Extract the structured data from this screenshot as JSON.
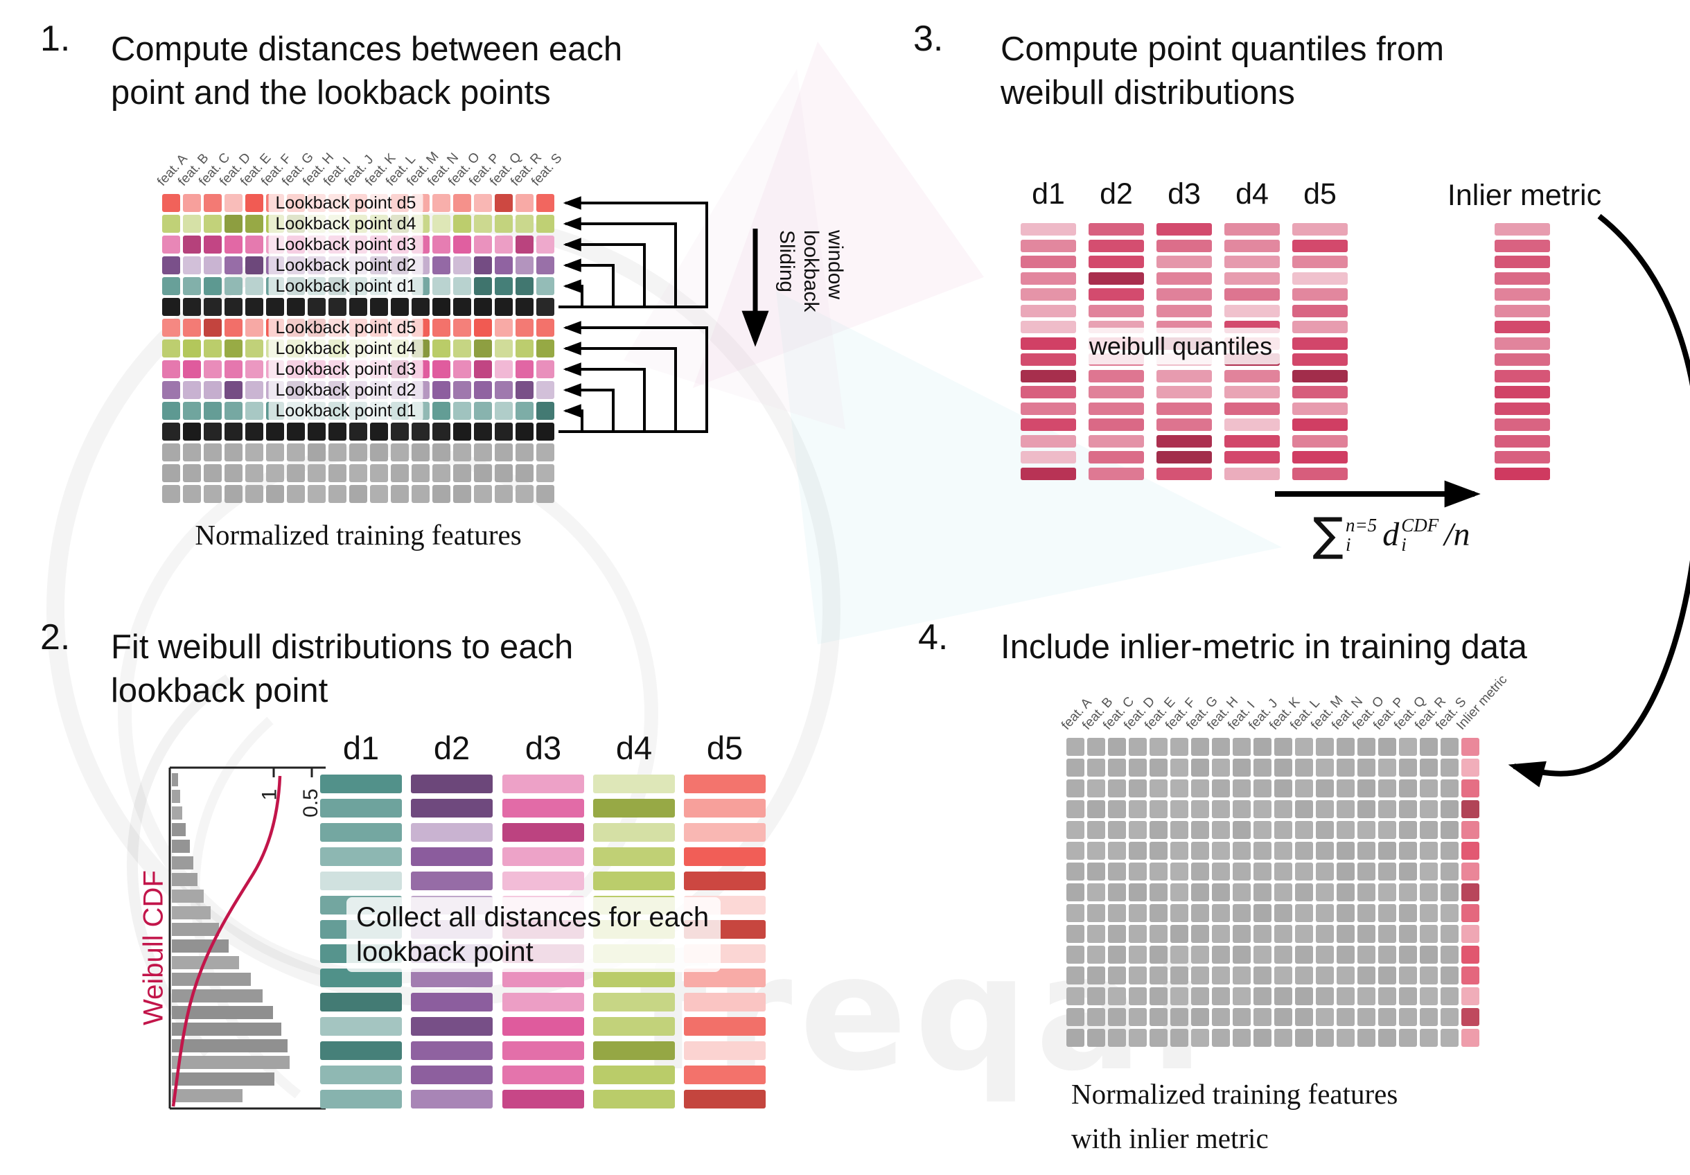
{
  "watermark": {
    "text": "freqai"
  },
  "colors": {
    "d1": "#4e8f87",
    "d2": "#8a5b9c",
    "d3": "#dd4f96",
    "d4": "#aec34f",
    "d5": "#f0544c",
    "black": "#1a1a1a",
    "gray": "#a6a6a6",
    "quantile": "#cf3a60",
    "inlier_pink": "#e1566f",
    "cdf_red": "#c2154a"
  },
  "step1": {
    "number": "1.",
    "title": "Compute distances between each point and the lookback points",
    "feature_labels": [
      "feat. A",
      "feat. B",
      "feat. C",
      "feat. D",
      "feat. E",
      "feat. F",
      "feat. G",
      "feat. H",
      "feat. I",
      "feat. J",
      "feat. K",
      "feat. L",
      "feat. M",
      "feat. N",
      "feat. O",
      "feat. P",
      "feat. Q",
      "feat. R",
      "feat. S"
    ],
    "rows": [
      {
        "type": "d5",
        "label": "Lookback point d5"
      },
      {
        "type": "d4",
        "label": "Lookback point d4"
      },
      {
        "type": "d3",
        "label": "Lookback point d3"
      },
      {
        "type": "d2",
        "label": "Lookback point d2"
      },
      {
        "type": "d1",
        "label": "Lookback point d1"
      },
      {
        "type": "black"
      },
      {
        "type": "d5",
        "label": "Lookback point d5"
      },
      {
        "type": "d4",
        "label": "Lookback point d4"
      },
      {
        "type": "d3",
        "label": "Lookback point d3"
      },
      {
        "type": "d2",
        "label": "Lookback point d2"
      },
      {
        "type": "d1",
        "label": "Lookback point d1"
      },
      {
        "type": "black"
      },
      {
        "type": "gray"
      },
      {
        "type": "gray"
      },
      {
        "type": "gray"
      }
    ],
    "sliding_window_lines": [
      "Sliding",
      "lookback",
      "window"
    ],
    "caption": "Normalized training features"
  },
  "step2": {
    "number": "2.",
    "title": "Fit weibull distributions to each lookback point",
    "chart": {
      "ylabel": "Weibull CDF",
      "tick_1": "1",
      "tick_05": "0.5"
    },
    "columns": [
      {
        "label": "d1",
        "color": "d1"
      },
      {
        "label": "d2",
        "color": "d2"
      },
      {
        "label": "d3",
        "color": "d3"
      },
      {
        "label": "d4",
        "color": "d4"
      },
      {
        "label": "d5",
        "color": "d5"
      }
    ],
    "bars_per_column": 14,
    "overlay": "Collect all distances for each lookback point"
  },
  "step3": {
    "number": "3.",
    "title": "Compute point quantiles from weibull distributions",
    "columns": [
      "d1",
      "d2",
      "d3",
      "d4",
      "d5"
    ],
    "bars_per_column": 16,
    "overlay": "weibull quantiles",
    "inlier_label": "Inlier metric",
    "formula": {
      "sum": "∑",
      "sum_sup": "n=5",
      "sum_sub": "i",
      "var": "d",
      "var_sub": "i",
      "var_sup": "CDF",
      "divisor": "/n"
    }
  },
  "step4": {
    "number": "4.",
    "title": "Include inlier-metric in training data",
    "feature_labels": [
      "feat. A",
      "feat. B",
      "feat. C",
      "feat. D",
      "feat. E",
      "feat. F",
      "feat. G",
      "feat. H",
      "feat. I",
      "feat. J",
      "feat. K",
      "feat. L",
      "feat. M",
      "feat. N",
      "feat. O",
      "feat. P",
      "feat. Q",
      "feat. R",
      "feat. S",
      "Inlier metric"
    ],
    "rows": 15,
    "caption_line1": "Normalized training features",
    "caption_line2": "with inlier metric"
  }
}
